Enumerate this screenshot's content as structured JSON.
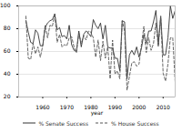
{
  "chart_data": {
    "type": "line",
    "xlabel": "year",
    "x": [
      1953,
      1954,
      1955,
      1956,
      1957,
      1958,
      1959,
      1960,
      1961,
      1962,
      1963,
      1964,
      1965,
      1966,
      1967,
      1968,
      1969,
      1970,
      1971,
      1972,
      1973,
      1974,
      1975,
      1976,
      1977,
      1978,
      1979,
      1980,
      1981,
      1982,
      1983,
      1984,
      1985,
      1986,
      1987,
      1988,
      1989,
      1990,
      1991,
      1992,
      1993,
      1994,
      1995,
      1996,
      1997,
      1998,
      1999,
      2000,
      2001,
      2002,
      2003,
      2004,
      2005,
      2006,
      2007,
      2008,
      2009,
      2010,
      2011,
      2012,
      2013,
      2014,
      2015
    ],
    "series": [
      {
        "name": "% Senate Success",
        "color": "#333333",
        "line_style": "solid",
        "values": [
          87,
          77,
          68,
          67,
          79,
          76,
          65,
          65,
          81,
          85,
          87,
          88,
          93,
          79,
          81,
          73,
          74,
          71,
          83,
          66,
          61,
          60,
          78,
          64,
          75,
          78,
          76,
          73,
          88,
          83,
          80,
          85,
          71,
          83,
          64,
          63,
          63,
          54,
          54,
          43,
          87,
          86,
          36,
          57,
          61,
          57,
          64,
          55,
          63,
          75,
          67,
          78,
          78,
          86,
          96,
          66,
          91,
          57,
          57,
          72,
          100,
          89,
          96
        ]
      },
      {
        "name": "% House Success",
        "color": "#555555",
        "line_style": "dashed",
        "values": [
          91,
          54,
          53,
          67,
          58,
          64,
          55,
          65,
          83,
          72,
          83,
          82,
          93,
          68,
          75,
          64,
          66,
          65,
          72,
          73,
          64,
          59,
          76,
          67,
          74,
          70,
          78,
          77,
          72,
          55,
          70,
          52,
          69,
          54,
          64,
          36,
          70,
          40,
          43,
          36,
          87,
          78,
          26,
          38,
          50,
          51,
          47,
          49,
          66,
          82,
          59,
          72,
          61,
          67,
          85,
          64,
          91,
          41,
          34,
          49,
          72,
          72,
          33
        ]
      }
    ],
    "xlim": [
      1950,
      2015
    ],
    "xticks": [
      1960,
      1970,
      1980,
      1990,
      2000,
      2010
    ],
    "ylim": [
      20,
      100
    ],
    "yticks": [
      20,
      40,
      60,
      80,
      100
    ],
    "grid": "y",
    "legend": "bottom"
  }
}
